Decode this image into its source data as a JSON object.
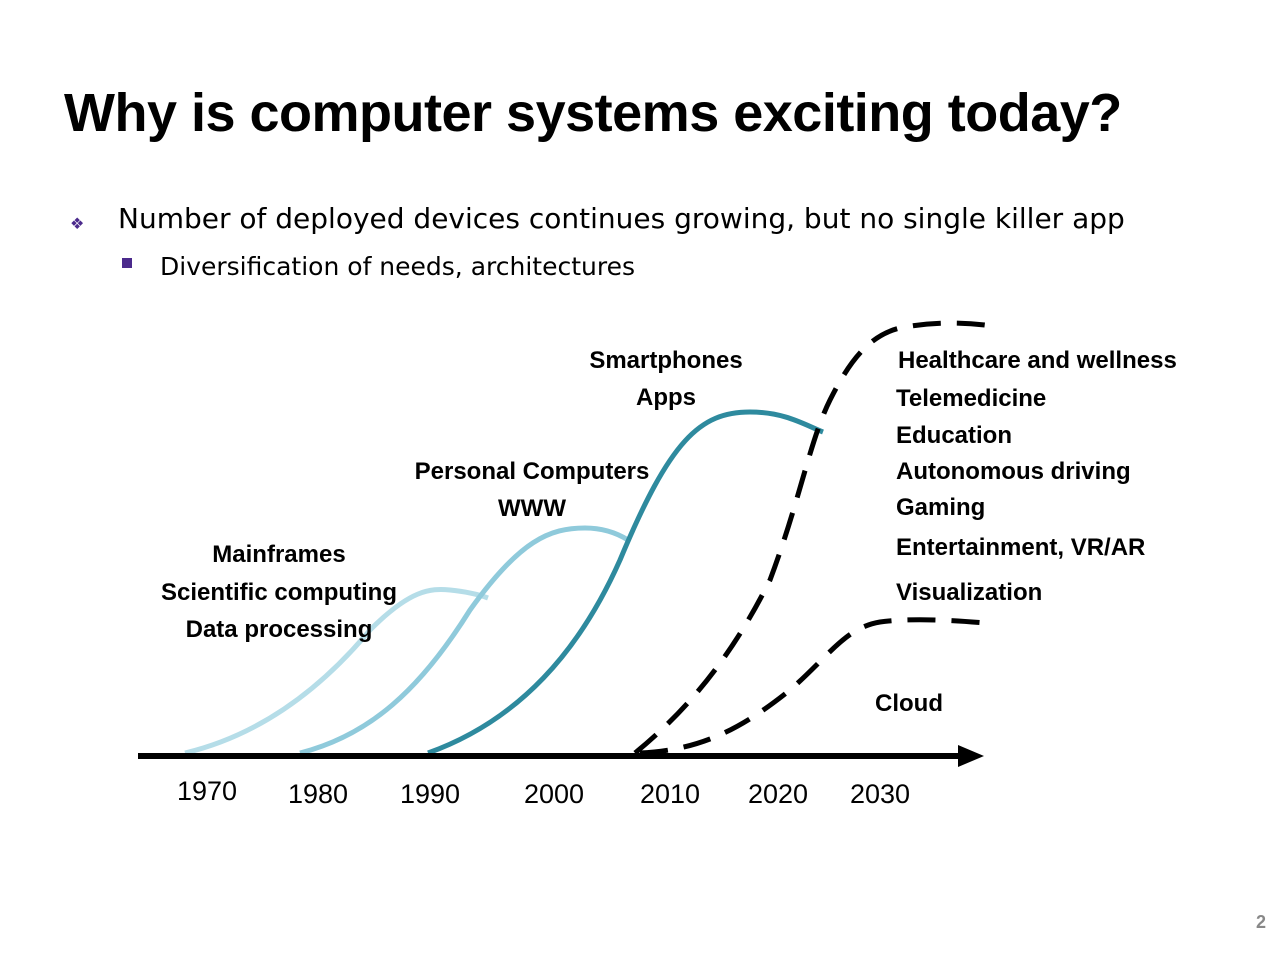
{
  "slide": {
    "title": "Why is computer systems exciting today?",
    "bullets": [
      {
        "text": "Number of deployed devices continues growing, but no single killer app",
        "marker": "diamond-cluster-icon"
      },
      {
        "text": "Diversification of needs, architectures",
        "marker": "square-icon"
      }
    ],
    "page_number": "2",
    "accent_color": "#4b2a8c"
  },
  "diagram": {
    "axis_ticks": [
      "1970",
      "1980",
      "1990",
      "2000",
      "2010",
      "2020",
      "2030"
    ],
    "eras": [
      {
        "lines": [
          "Mainframes",
          "Scientific computing",
          "Data processing"
        ],
        "color": "#b5dde8"
      },
      {
        "lines": [
          "Personal Computers",
          "WWW"
        ],
        "color": "#8fcadb"
      },
      {
        "lines": [
          "Smartphones",
          "Apps"
        ],
        "color": "#2e8a9e"
      }
    ],
    "future_apps": [
      "Healthcare and wellness",
      "Telemedicine",
      "Education",
      "Autonomous driving",
      "Gaming",
      "Entertainment, VR/AR",
      "Visualization"
    ],
    "cloud_label": "Cloud"
  }
}
